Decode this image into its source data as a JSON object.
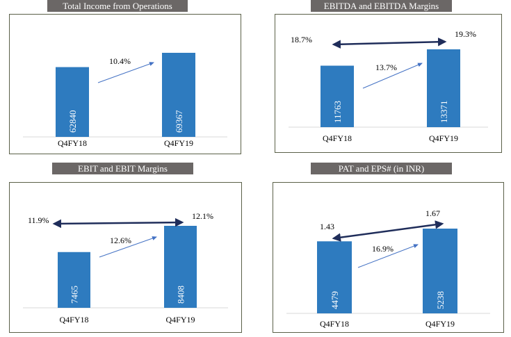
{
  "chart_data": [
    {
      "type": "bar",
      "title": "Total Income from Operations",
      "categories": [
        "Q4FY18",
        "Q4FY19"
      ],
      "values": [
        62840,
        69367
      ],
      "growth_label": "10.4%",
      "bar_color": "#2e7bbf"
    },
    {
      "type": "bar",
      "title": "EBITDA and EBITDA Margins",
      "categories": [
        "Q4FY18",
        "Q4FY19"
      ],
      "values": [
        11763,
        13371
      ],
      "growth_label": "13.7%",
      "line_series": {
        "values": [
          18.7,
          19.3
        ],
        "labels": [
          "18.7%",
          "19.3%"
        ]
      },
      "bar_color": "#2e7bbf",
      "line_color": "#1f2d5a"
    },
    {
      "type": "bar",
      "title": "EBIT and EBIT Margins",
      "categories": [
        "Q4FY18",
        "Q4FY19"
      ],
      "values": [
        7465,
        8408
      ],
      "growth_label": "12.6%",
      "line_series": {
        "values": [
          11.9,
          12.1
        ],
        "labels": [
          "11.9%",
          "12.1%"
        ]
      },
      "bar_color": "#2e7bbf",
      "line_color": "#1f2d5a"
    },
    {
      "type": "bar",
      "title": "PAT and EPS# (in INR)",
      "categories": [
        "Q4FY18",
        "Q4FY19"
      ],
      "values": [
        4479,
        5238
      ],
      "growth_label": "16.9%",
      "line_series": {
        "values": [
          1.43,
          1.67
        ],
        "labels": [
          "1.43",
          "1.67"
        ]
      },
      "bar_color": "#2e7bbf",
      "line_color": "#1f2d5a"
    }
  ]
}
